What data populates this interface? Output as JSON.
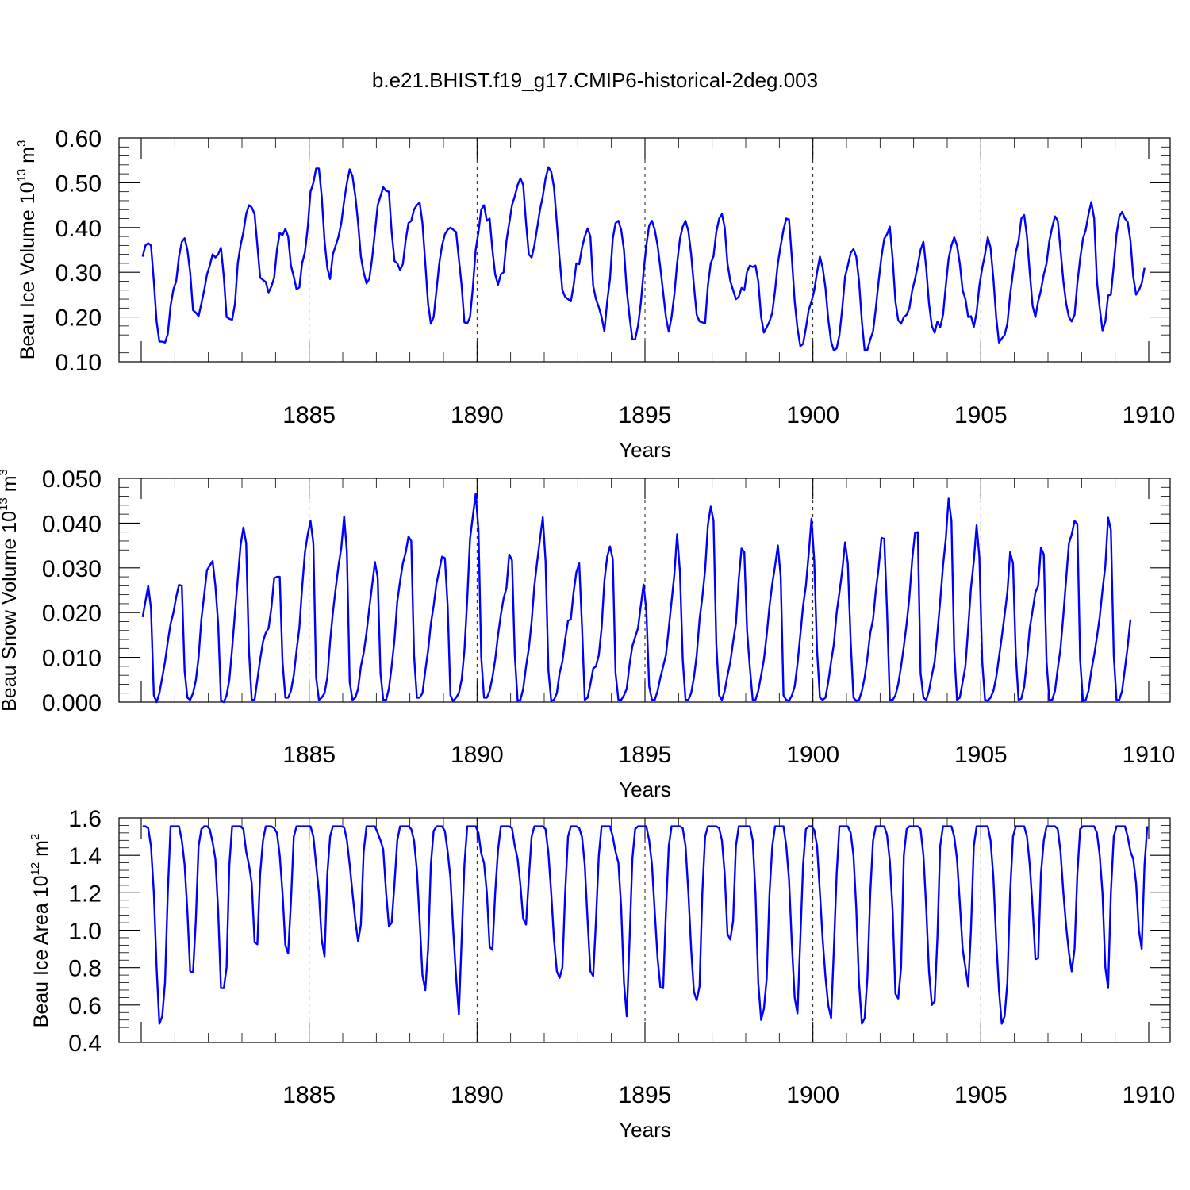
{
  "title": "b.e21.BHIST.f19_g17.CMIP6-historical-2deg.003",
  "colors": {
    "series": "#0000ff",
    "frame": "#000000"
  },
  "chart_data": [
    {
      "type": "line",
      "ylabel": "Beau Ice Volume 10",
      "ylabel_exp": "13",
      "ylabel_unit": " m",
      "ylabel_unit_exp": "3",
      "xlabel": "Years",
      "xlim": [
        1880,
        1910
      ],
      "ylim": [
        0.1,
        0.6
      ],
      "yticks": [
        "0.10",
        "0.20",
        "0.30",
        "0.40",
        "0.50",
        "0.60"
      ],
      "xticks": [
        "1885",
        "1890",
        "1895",
        "1900",
        "1905",
        "1910"
      ],
      "grid": "dashed vertical lines at 5-year ticks",
      "x_start": 1880.0417,
      "x_step": 0.08333,
      "values": [
        0.335,
        0.36,
        0.365,
        0.36,
        0.28,
        0.19,
        0.145,
        0.145,
        0.143,
        0.162,
        0.225,
        0.262,
        0.28,
        0.335,
        0.368,
        0.376,
        0.35,
        0.3,
        0.215,
        0.21,
        0.202,
        0.23,
        0.26,
        0.295,
        0.315,
        0.34,
        0.333,
        0.34,
        0.355,
        0.29,
        0.2,
        0.196,
        0.194,
        0.23,
        0.32,
        0.36,
        0.39,
        0.43,
        0.45,
        0.445,
        0.43,
        0.36,
        0.288,
        0.283,
        0.278,
        0.255,
        0.268,
        0.288,
        0.35,
        0.388,
        0.383,
        0.397,
        0.38,
        0.315,
        0.29,
        0.262,
        0.266,
        0.32,
        0.345,
        0.4,
        0.48,
        0.5,
        0.532,
        0.532,
        0.47,
        0.37,
        0.31,
        0.285,
        0.34,
        0.36,
        0.38,
        0.41,
        0.46,
        0.5,
        0.53,
        0.515,
        0.47,
        0.41,
        0.335,
        0.3,
        0.275,
        0.285,
        0.33,
        0.39,
        0.45,
        0.47,
        0.49,
        0.482,
        0.48,
        0.39,
        0.325,
        0.32,
        0.305,
        0.318,
        0.372,
        0.41,
        0.415,
        0.44,
        0.45,
        0.456,
        0.41,
        0.32,
        0.23,
        0.185,
        0.2,
        0.26,
        0.32,
        0.36,
        0.385,
        0.395,
        0.4,
        0.395,
        0.39,
        0.33,
        0.27,
        0.188,
        0.186,
        0.2,
        0.265,
        0.35,
        0.39,
        0.44,
        0.45,
        0.415,
        0.42,
        0.35,
        0.295,
        0.272,
        0.295,
        0.3,
        0.37,
        0.41,
        0.45,
        0.47,
        0.495,
        0.51,
        0.495,
        0.41,
        0.34,
        0.333,
        0.36,
        0.4,
        0.44,
        0.47,
        0.51,
        0.535,
        0.525,
        0.49,
        0.41,
        0.33,
        0.26,
        0.245,
        0.24,
        0.235,
        0.27,
        0.32,
        0.318,
        0.355,
        0.38,
        0.398,
        0.38,
        0.27,
        0.24,
        0.222,
        0.2,
        0.168,
        0.235,
        0.285,
        0.375,
        0.41,
        0.415,
        0.395,
        0.35,
        0.26,
        0.2,
        0.15,
        0.15,
        0.18,
        0.23,
        0.3,
        0.36,
        0.405,
        0.415,
        0.395,
        0.36,
        0.31,
        0.255,
        0.2,
        0.167,
        0.2,
        0.25,
        0.32,
        0.375,
        0.402,
        0.415,
        0.392,
        0.34,
        0.27,
        0.205,
        0.19,
        0.188,
        0.186,
        0.27,
        0.32,
        0.336,
        0.39,
        0.42,
        0.43,
        0.4,
        0.32,
        0.28,
        0.26,
        0.24,
        0.245,
        0.265,
        0.26,
        0.302,
        0.315,
        0.312,
        0.315,
        0.28,
        0.2,
        0.165,
        0.177,
        0.19,
        0.21,
        0.26,
        0.32,
        0.36,
        0.395,
        0.42,
        0.418,
        0.33,
        0.235,
        0.175,
        0.135,
        0.14,
        0.175,
        0.215,
        0.235,
        0.26,
        0.3,
        0.335,
        0.31,
        0.265,
        0.195,
        0.145,
        0.125,
        0.13,
        0.16,
        0.22,
        0.29,
        0.315,
        0.343,
        0.352,
        0.335,
        0.28,
        0.19,
        0.125,
        0.127,
        0.15,
        0.168,
        0.22,
        0.28,
        0.335,
        0.375,
        0.385,
        0.402,
        0.33,
        0.235,
        0.193,
        0.185,
        0.2,
        0.205,
        0.22,
        0.26,
        0.285,
        0.315,
        0.35,
        0.368,
        0.31,
        0.23,
        0.18,
        0.165,
        0.19,
        0.177,
        0.205,
        0.27,
        0.33,
        0.36,
        0.378,
        0.36,
        0.32,
        0.26,
        0.24,
        0.2,
        0.202,
        0.178,
        0.21,
        0.27,
        0.31,
        0.34,
        0.378,
        0.355,
        0.285,
        0.2,
        0.143,
        0.152,
        0.16,
        0.185,
        0.25,
        0.3,
        0.345,
        0.37,
        0.42,
        0.428,
        0.38,
        0.3,
        0.225,
        0.2,
        0.235,
        0.26,
        0.295,
        0.32,
        0.37,
        0.4,
        0.425,
        0.415,
        0.35,
        0.28,
        0.23,
        0.2,
        0.19,
        0.205,
        0.275,
        0.33,
        0.375,
        0.395,
        0.43,
        0.457,
        0.42,
        0.28,
        0.22,
        0.17,
        0.19,
        0.248,
        0.25,
        0.315,
        0.385,
        0.425,
        0.435,
        0.42,
        0.412,
        0.37,
        0.29,
        0.25,
        0.26,
        0.275,
        0.31
      ]
    },
    {
      "type": "line",
      "ylabel": "Beau Snow Volume 10",
      "ylabel_exp": "13",
      "ylabel_unit": " m",
      "ylabel_unit_exp": "3",
      "xlabel": "Years",
      "xlim": [
        1880,
        1910
      ],
      "ylim": [
        0.0,
        0.05
      ],
      "yticks": [
        "0.000",
        "0.010",
        "0.020",
        "0.030",
        "0.040",
        "0.050"
      ],
      "xticks": [
        "1885",
        "1890",
        "1895",
        "1900",
        "1905",
        "1910"
      ],
      "grid": "dashed vertical lines at 5-year ticks",
      "x_start": 1880.0417,
      "x_step": 0.08333,
      "values": [
        0.019,
        0.0225,
        0.026,
        0.021,
        0.0015,
        0.0,
        0.002,
        0.0055,
        0.009,
        0.0135,
        0.0175,
        0.02,
        0.0235,
        0.0262,
        0.026,
        0.007,
        0.001,
        0.0005,
        0.002,
        0.0048,
        0.01,
        0.0185,
        0.024,
        0.0295,
        0.0305,
        0.0315,
        0.026,
        0.0175,
        0.0005,
        0.0,
        0.0015,
        0.005,
        0.012,
        0.02,
        0.0275,
        0.035,
        0.039,
        0.0355,
        0.0115,
        0.0005,
        0.0005,
        0.005,
        0.0095,
        0.0135,
        0.0155,
        0.0165,
        0.021,
        0.0277,
        0.028,
        0.028,
        0.009,
        0.001,
        0.001,
        0.0025,
        0.006,
        0.0115,
        0.0165,
        0.0255,
        0.0335,
        0.0375,
        0.0405,
        0.0355,
        0.0055,
        0.0005,
        0.001,
        0.002,
        0.0055,
        0.0135,
        0.02,
        0.0255,
        0.0305,
        0.0345,
        0.0415,
        0.0335,
        0.0045,
        0.0005,
        0.001,
        0.003,
        0.008,
        0.011,
        0.0155,
        0.021,
        0.026,
        0.0313,
        0.0278,
        0.0065,
        0.0005,
        0.0005,
        0.003,
        0.008,
        0.014,
        0.0225,
        0.027,
        0.031,
        0.0335,
        0.037,
        0.036,
        0.0105,
        0.001,
        0.001,
        0.002,
        0.007,
        0.0115,
        0.0175,
        0.0215,
        0.0265,
        0.0295,
        0.0325,
        0.0322,
        0.0215,
        0.0015,
        0.0002,
        0.001,
        0.002,
        0.005,
        0.0115,
        0.023,
        0.0365,
        0.0415,
        0.0465,
        0.0385,
        0.01,
        0.001,
        0.001,
        0.0025,
        0.0055,
        0.0095,
        0.015,
        0.0195,
        0.0232,
        0.0255,
        0.033,
        0.0317,
        0.0105,
        0.0003,
        0.0005,
        0.003,
        0.008,
        0.012,
        0.018,
        0.026,
        0.0315,
        0.0365,
        0.0413,
        0.0315,
        0.007,
        0.0003,
        0.0005,
        0.002,
        0.0065,
        0.009,
        0.014,
        0.0182,
        0.0185,
        0.0245,
        0.029,
        0.031,
        0.017,
        0.0005,
        0.001,
        0.004,
        0.0075,
        0.008,
        0.0105,
        0.0165,
        0.027,
        0.0325,
        0.0348,
        0.032,
        0.0065,
        0.0005,
        0.0005,
        0.0015,
        0.003,
        0.0085,
        0.0125,
        0.0145,
        0.0165,
        0.0215,
        0.0263,
        0.0205,
        0.0035,
        0.0005,
        0.0005,
        0.0025,
        0.0055,
        0.008,
        0.0105,
        0.0165,
        0.0225,
        0.0285,
        0.0375,
        0.029,
        0.0095,
        0.0005,
        0.0005,
        0.002,
        0.0055,
        0.0105,
        0.0185,
        0.0235,
        0.0295,
        0.0395,
        0.0437,
        0.0405,
        0.013,
        0.0015,
        0.0005,
        0.0025,
        0.006,
        0.009,
        0.0135,
        0.0175,
        0.0275,
        0.0343,
        0.0335,
        0.016,
        0.0075,
        0.0005,
        0.0005,
        0.0025,
        0.006,
        0.0095,
        0.015,
        0.0215,
        0.0265,
        0.0305,
        0.035,
        0.028,
        0.0015,
        0.0005,
        0.0003,
        0.0015,
        0.0035,
        0.0085,
        0.015,
        0.0215,
        0.026,
        0.033,
        0.041,
        0.0315,
        0.0115,
        0.001,
        0.0005,
        0.001,
        0.0045,
        0.009,
        0.013,
        0.02,
        0.0245,
        0.0295,
        0.0357,
        0.031,
        0.0135,
        0.001,
        0.0003,
        0.0005,
        0.0025,
        0.0055,
        0.01,
        0.0155,
        0.0185,
        0.025,
        0.03,
        0.0367,
        0.0365,
        0.0205,
        0.0005,
        0.0005,
        0.0015,
        0.004,
        0.008,
        0.0125,
        0.0175,
        0.0235,
        0.032,
        0.0378,
        0.038,
        0.0065,
        0.001,
        0.0005,
        0.0025,
        0.006,
        0.009,
        0.0155,
        0.0225,
        0.0305,
        0.0365,
        0.0455,
        0.0405,
        0.0115,
        0.0005,
        0.001,
        0.0045,
        0.008,
        0.0165,
        0.0255,
        0.0315,
        0.0395,
        0.0325,
        0.009,
        0.0005,
        0.0003,
        0.001,
        0.0025,
        0.0055,
        0.01,
        0.0145,
        0.0195,
        0.0245,
        0.0335,
        0.031,
        0.0105,
        0.0005,
        0.0008,
        0.0035,
        0.0095,
        0.0165,
        0.0205,
        0.0245,
        0.026,
        0.0345,
        0.033,
        0.009,
        0.0005,
        0.0005,
        0.0025,
        0.0075,
        0.012,
        0.0195,
        0.0275,
        0.0355,
        0.0375,
        0.0405,
        0.0398,
        0.0095,
        0.0003,
        0.0005,
        0.0025,
        0.007,
        0.0105,
        0.0145,
        0.019,
        0.025,
        0.0305,
        0.0412,
        0.0385,
        0.0105,
        0.0005,
        0.0005,
        0.0025,
        0.0075,
        0.0125,
        0.0185
      ]
    },
    {
      "type": "line",
      "ylabel": "Beau Ice Area 10",
      "ylabel_exp": "12",
      "ylabel_unit": " m",
      "ylabel_unit_exp": "2",
      "xlabel": "Years",
      "xlim": [
        1880,
        1910
      ],
      "ylim": [
        0.4,
        1.6
      ],
      "yticks": [
        "0.4",
        "0.6",
        "0.8",
        "1.0",
        "1.2",
        "1.4",
        "1.6"
      ],
      "xticks": [
        "1885",
        "1890",
        "1895",
        "1900",
        "1905",
        "1910"
      ],
      "grid": "dashed vertical lines at 5-year ticks",
      "x_start": 1880.0417,
      "x_step": 0.08333,
      "values": [
        1.555,
        1.555,
        1.545,
        1.45,
        1.2,
        0.8,
        0.5,
        0.54,
        0.72,
        1.2,
        1.555,
        1.555,
        1.555,
        1.555,
        1.48,
        1.35,
        1.1,
        0.78,
        0.775,
        1.05,
        1.45,
        1.54,
        1.555,
        1.555,
        1.54,
        1.47,
        1.38,
        1.1,
        0.69,
        0.69,
        0.8,
        1.35,
        1.555,
        1.555,
        1.555,
        1.555,
        1.54,
        1.42,
        1.35,
        1.25,
        0.935,
        0.925,
        1.3,
        1.48,
        1.555,
        1.555,
        1.555,
        1.545,
        1.52,
        1.4,
        1.2,
        0.92,
        0.875,
        1.15,
        1.5,
        1.555,
        1.555,
        1.555,
        1.555,
        1.555,
        1.555,
        1.5,
        1.35,
        1.2,
        0.95,
        0.86,
        1.3,
        1.5,
        1.555,
        1.555,
        1.555,
        1.555,
        1.55,
        1.48,
        1.35,
        1.2,
        1.05,
        0.94,
        1.03,
        1.42,
        1.555,
        1.555,
        1.555,
        1.555,
        1.52,
        1.48,
        1.43,
        1.2,
        1.02,
        1.04,
        1.25,
        1.48,
        1.555,
        1.555,
        1.555,
        1.555,
        1.54,
        1.48,
        1.32,
        1.05,
        0.76,
        0.68,
        0.9,
        1.35,
        1.53,
        1.555,
        1.555,
        1.555,
        1.53,
        1.42,
        1.28,
        1.0,
        0.75,
        0.55,
        0.95,
        1.35,
        1.555,
        1.555,
        1.555,
        1.555,
        1.52,
        1.41,
        1.36,
        1.2,
        0.91,
        0.895,
        1.2,
        1.43,
        1.555,
        1.555,
        1.555,
        1.555,
        1.545,
        1.45,
        1.38,
        1.24,
        1.06,
        1.03,
        1.28,
        1.5,
        1.555,
        1.555,
        1.555,
        1.555,
        1.54,
        1.41,
        1.2,
        0.95,
        0.78,
        0.745,
        0.8,
        1.2,
        1.5,
        1.555,
        1.555,
        1.555,
        1.545,
        1.5,
        1.35,
        1.05,
        0.78,
        0.755,
        1.05,
        1.4,
        1.555,
        1.555,
        1.555,
        1.555,
        1.5,
        1.42,
        1.36,
        1.12,
        0.72,
        0.54,
        0.95,
        1.38,
        1.54,
        1.555,
        1.555,
        1.555,
        1.555,
        1.48,
        1.35,
        1.1,
        0.85,
        0.695,
        0.69,
        1.1,
        1.45,
        1.555,
        1.555,
        1.555,
        1.555,
        1.545,
        1.45,
        1.2,
        0.9,
        0.67,
        0.625,
        0.7,
        1.2,
        1.5,
        1.555,
        1.555,
        1.555,
        1.555,
        1.545,
        1.48,
        1.3,
        0.98,
        0.95,
        1.05,
        1.45,
        1.555,
        1.555,
        1.555,
        1.555,
        1.555,
        1.48,
        1.2,
        0.72,
        0.52,
        0.58,
        0.74,
        1.2,
        1.45,
        1.555,
        1.555,
        1.555,
        1.555,
        1.45,
        1.27,
        0.92,
        0.64,
        0.555,
        0.95,
        1.35,
        1.54,
        1.555,
        1.555,
        1.535,
        1.45,
        1.2,
        0.95,
        0.75,
        0.6,
        0.53,
        0.9,
        1.3,
        1.555,
        1.555,
        1.555,
        1.555,
        1.52,
        1.4,
        1.12,
        0.72,
        0.5,
        0.53,
        0.75,
        1.2,
        1.48,
        1.555,
        1.555,
        1.555,
        1.555,
        1.51,
        1.37,
        1.1,
        0.66,
        0.635,
        0.8,
        1.4,
        1.54,
        1.555,
        1.555,
        1.555,
        1.555,
        1.54,
        1.4,
        1.12,
        0.78,
        0.6,
        0.62,
        0.96,
        1.45,
        1.555,
        1.555,
        1.555,
        1.555,
        1.5,
        1.38,
        1.15,
        0.9,
        0.8,
        0.7,
        1.0,
        1.45,
        1.555,
        1.555,
        1.555,
        1.555,
        1.555,
        1.48,
        1.28,
        0.95,
        0.68,
        0.5,
        0.54,
        0.72,
        1.2,
        1.5,
        1.555,
        1.555,
        1.555,
        1.555,
        1.5,
        1.35,
        1.12,
        0.845,
        0.85,
        1.3,
        1.48,
        1.555,
        1.555,
        1.555,
        1.555,
        1.54,
        1.42,
        1.2,
        1.02,
        0.88,
        0.78,
        0.9,
        1.3,
        1.54,
        1.555,
        1.555,
        1.555,
        1.555,
        1.555,
        1.52,
        1.4,
        1.2,
        0.8,
        0.69,
        1.2,
        1.5,
        1.555,
        1.555,
        1.555,
        1.555,
        1.5,
        1.42,
        1.38,
        1.25,
        1.0,
        0.9,
        1.35,
        1.555
      ]
    }
  ]
}
